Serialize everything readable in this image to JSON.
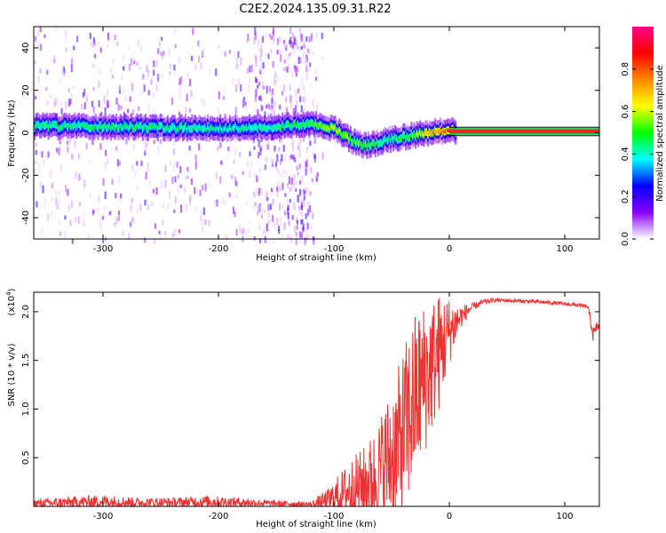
{
  "title": "C2E2.2024.135.09.31.R22",
  "chart_data": [
    {
      "type": "heatmap",
      "xlabel": "Height of straight line (km)",
      "ylabel": "Frequency (Hz)",
      "xlim": [
        -360,
        130
      ],
      "ylim": [
        -50,
        50
      ],
      "xticks": [
        -300,
        -200,
        -100,
        0,
        100
      ],
      "xtick_labels": [
        "-300",
        "-200",
        "-100",
        "0",
        "100"
      ],
      "yticks": [
        -40,
        -20,
        0,
        20,
        40
      ],
      "ytick_labels": [
        "-40",
        "-20",
        "0",
        "20",
        "40"
      ],
      "colorbar": {
        "label": "Normalized spectral amplitude",
        "range": [
          0,
          1
        ],
        "ticks": [
          0.0,
          0.2,
          0.4,
          0.6,
          0.8
        ],
        "tick_labels": [
          "0.0",
          "0.2",
          "0.4",
          "0.6",
          "0.8"
        ],
        "colormap": [
          "#ffffff",
          "#8800ff",
          "#0000ff",
          "#00ffff",
          "#00ff00",
          "#ffff00",
          "#ff8800",
          "#ff0000",
          "#ff0088"
        ]
      },
      "ridge": {
        "x": [
          -360,
          -300,
          -250,
          -200,
          -150,
          -120,
          -100,
          -90,
          -80,
          -70,
          -60,
          -50,
          -40,
          -30,
          -20,
          -10,
          0,
          130
        ],
        "frequency": [
          3,
          3,
          2.5,
          2,
          3,
          4,
          2,
          -2,
          -5,
          -6,
          -4,
          -3,
          -2,
          -1,
          0,
          1,
          1,
          0
        ],
        "amplitude": [
          0.45,
          0.45,
          0.45,
          0.42,
          0.42,
          0.5,
          0.6,
          0.55,
          0.55,
          0.5,
          0.45,
          0.45,
          0.45,
          0.55,
          0.7,
          0.75,
          0.8,
          0.95
        ]
      }
    },
    {
      "type": "line",
      "xlabel": "Height of straight line (km)",
      "ylabel": "SNR (10 * v/v)",
      "scale_label": "(x10",
      "scale_exponent": "4",
      "xlim": [
        -360,
        130
      ],
      "ylim": [
        0.0,
        2.2
      ],
      "xticks": [
        -300,
        -200,
        -100,
        0,
        100
      ],
      "xtick_labels": [
        "-300",
        "-200",
        "-100",
        "0",
        "100"
      ],
      "yticks": [
        0.5,
        1.0,
        1.5,
        2.0
      ],
      "ytick_labels": [
        "0.5",
        "1.0",
        "1.5",
        "2.0"
      ],
      "color": "#ee3333",
      "series": [
        {
          "x": [
            -360,
            -330,
            -300,
            -270,
            -240,
            -210,
            -180,
            -150,
            -120,
            -105,
            -95,
            -85,
            -75,
            -65,
            -55,
            -45,
            -38,
            -30,
            -22,
            -15,
            -8,
            0,
            10,
            20,
            30,
            40,
            60,
            80,
            100,
            110,
            120,
            125,
            128,
            130
          ],
          "y": [
            0.03,
            0.04,
            0.05,
            0.04,
            0.04,
            0.05,
            0.04,
            0.03,
            0.02,
            0.06,
            0.12,
            0.18,
            0.22,
            0.3,
            0.45,
            0.6,
            0.8,
            1.1,
            1.3,
            1.45,
            1.6,
            1.8,
            1.95,
            2.05,
            2.1,
            2.12,
            2.11,
            2.1,
            2.08,
            2.07,
            2.05,
            1.75,
            1.85,
            1.85
          ],
          "noise": [
            0.04,
            0.06,
            0.07,
            0.05,
            0.05,
            0.06,
            0.05,
            0.03,
            0.03,
            0.12,
            0.22,
            0.32,
            0.38,
            0.48,
            0.65,
            0.8,
            0.9,
            0.9,
            0.8,
            0.7,
            0.6,
            0.35,
            0.12,
            0.04,
            0.03,
            0.02,
            0.02,
            0.02,
            0.02,
            0.02,
            0.02,
            0.1,
            0.05,
            0.05
          ]
        }
      ]
    }
  ]
}
